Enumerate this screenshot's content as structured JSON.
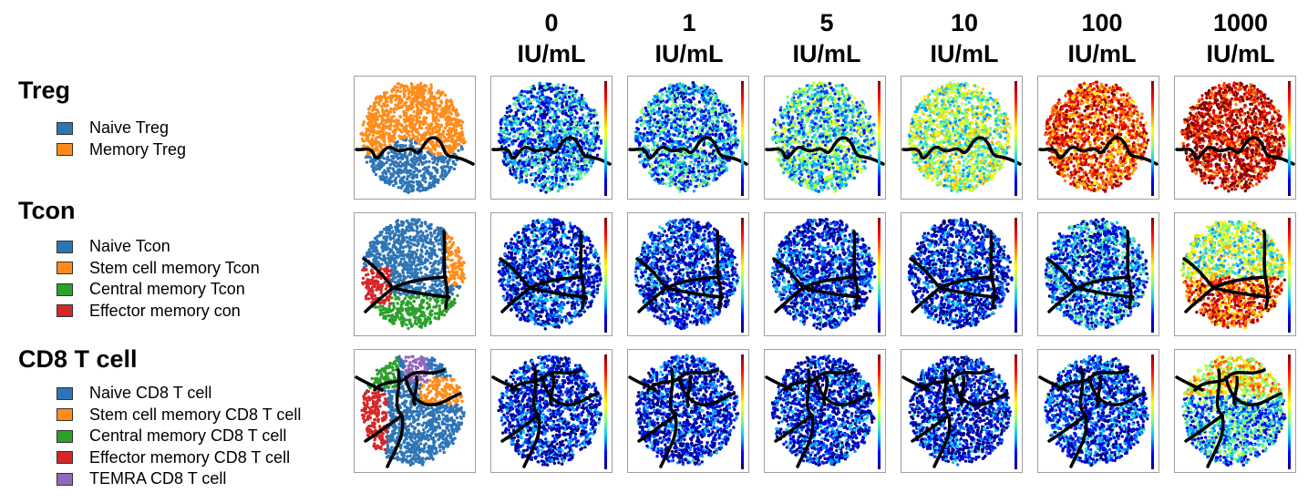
{
  "columns": [
    {
      "line1": "0",
      "line2": "IU/mL"
    },
    {
      "line1": "1",
      "line2": "IU/mL"
    },
    {
      "line1": "5",
      "line2": "IU/mL"
    },
    {
      "line1": "10",
      "line2": "IU/mL"
    },
    {
      "line1": "100",
      "line2": "IU/mL"
    },
    {
      "line1": "1000",
      "line2": "IU/mL"
    }
  ],
  "groups": [
    {
      "title": "Treg",
      "legend": [
        {
          "label": "Naive Treg",
          "color": "#2e75b6"
        },
        {
          "label": "Memory Treg",
          "color": "#ff8c1a"
        }
      ],
      "cluster_colors": [
        "#2e75b6",
        "#ff8c1a"
      ],
      "intensity_level": [
        0.22,
        0.25,
        0.35,
        0.45,
        0.8,
        0.92
      ]
    },
    {
      "title": "Tcon",
      "legend": [
        {
          "label": "Naive Tcon",
          "color": "#2e75b6"
        },
        {
          "label": "Stem cell memory Tcon",
          "color": "#ff8c1a"
        },
        {
          "label": "Central memory Tcon",
          "color": "#2ca02c"
        },
        {
          "label": "Effector memory con",
          "color": "#d62728"
        }
      ],
      "cluster_colors": [
        "#2e75b6",
        "#ff8c1a",
        "#2ca02c",
        "#d62728"
      ],
      "intensity_level": [
        0.12,
        0.12,
        0.12,
        0.12,
        0.2,
        0.45
      ]
    },
    {
      "title": "CD8 T cell",
      "legend": [
        {
          "label": "Naive CD8 T cell",
          "color": "#2e75b6"
        },
        {
          "label": "Stem cell memory CD8 T cell",
          "color": "#ff8c1a"
        },
        {
          "label": "Central memory CD8 T cell",
          "color": "#2ca02c"
        },
        {
          "label": "Effector memory CD8 T cell",
          "color": "#d62728"
        },
        {
          "label": "TEMRA CD8 T cell",
          "color": "#9467bd"
        }
      ],
      "cluster_colors": [
        "#2e75b6",
        "#ff8c1a",
        "#2ca02c",
        "#d62728",
        "#9467bd"
      ],
      "intensity_level": [
        0.1,
        0.1,
        0.1,
        0.1,
        0.14,
        0.28
      ]
    }
  ],
  "colorscale": [
    "#00007f",
    "#0000ff",
    "#00bfff",
    "#7fff7f",
    "#ffff00",
    "#ff7f00",
    "#ff0000",
    "#7f0000"
  ],
  "boundary_color": "#000000"
}
